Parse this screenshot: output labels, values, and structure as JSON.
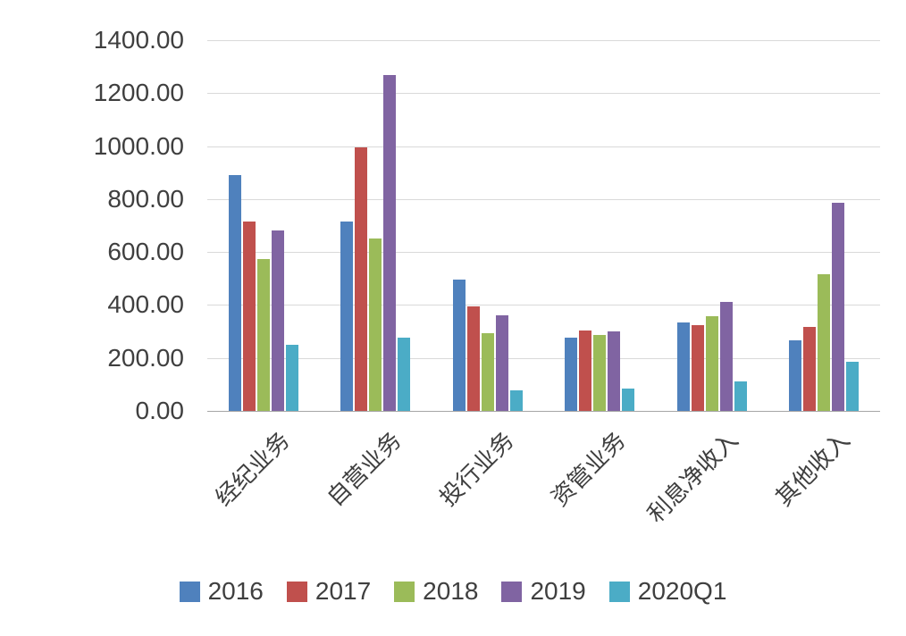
{
  "chart_data": {
    "type": "bar",
    "title": "",
    "xlabel": "",
    "ylabel": "",
    "categories": [
      "经纪业务",
      "自营业务",
      "投行业务",
      "资管业务",
      "利息净收入",
      "其他收入"
    ],
    "series": [
      {
        "name": "2016",
        "color": "#4f81bd",
        "values": [
          890,
          715,
          495,
          275,
          335,
          268
        ]
      },
      {
        "name": "2017",
        "color": "#c0504d",
        "values": [
          715,
          995,
          395,
          305,
          323,
          318
        ]
      },
      {
        "name": "2018",
        "color": "#9bbb59",
        "values": [
          575,
          650,
          295,
          288,
          357,
          515
        ]
      },
      {
        "name": "2019",
        "color": "#8064a2",
        "values": [
          680,
          1270,
          360,
          300,
          410,
          785
        ]
      },
      {
        "name": "2020Q1",
        "color": "#4bacc6",
        "values": [
          250,
          275,
          78,
          85,
          113,
          185
        ]
      }
    ],
    "ylim": [
      0,
      1400
    ],
    "ytick_step": 200,
    "ytick_labels": [
      "0.00",
      "200.00",
      "400.00",
      "600.00",
      "800.00",
      "1000.00",
      "1200.00",
      "1400.00"
    ],
    "grid": true,
    "legend_position": "bottom",
    "colors": {
      "gridline": "#d9d9d9",
      "axis_line": "#a6a6a6",
      "text": "#3f3f3f",
      "background": "#ffffff"
    }
  }
}
